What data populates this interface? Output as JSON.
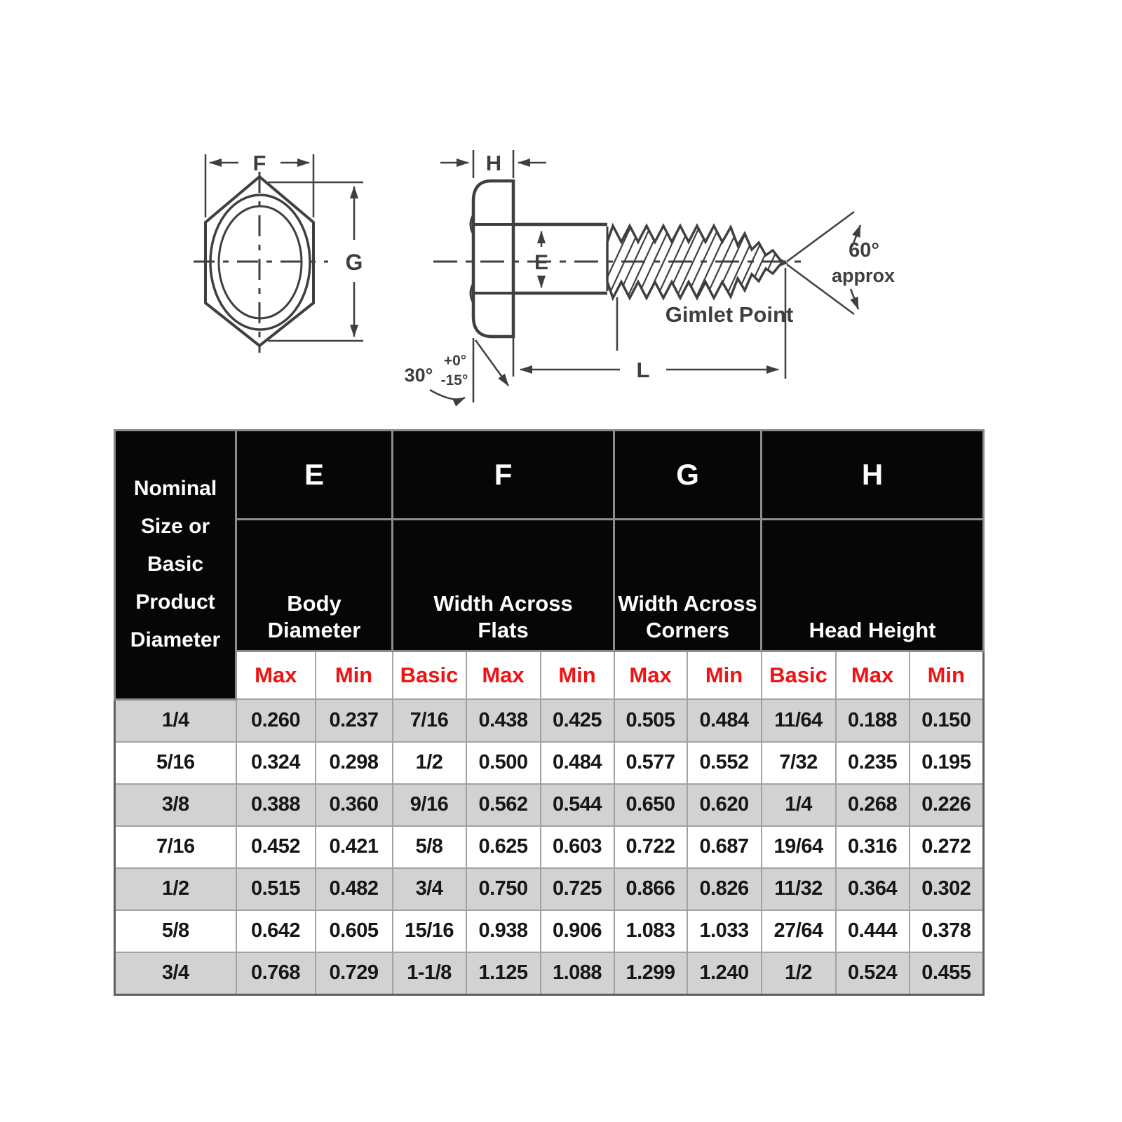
{
  "diagram": {
    "front_view": {
      "f_label": "F",
      "g_label": "G"
    },
    "side_view": {
      "h_label": "H",
      "e_label": "E",
      "l_label": "L",
      "chamfer_angle": "30°",
      "chamfer_tol_plus": "+0°",
      "chamfer_tol_minus": "-15°",
      "point_angle": "60°",
      "point_angle_note": "approx",
      "point_label": "Gimlet Point"
    }
  },
  "table": {
    "corner_header": "Nominal\nSize or\nBasic\nProduct\nDiameter",
    "groups": [
      {
        "letter": "E",
        "description": "Body\nDiameter"
      },
      {
        "letter": "F",
        "description": "Width Across\nFlats"
      },
      {
        "letter": "G",
        "description": "Width Across\nCorners"
      },
      {
        "letter": "H",
        "description": "Head Height"
      }
    ],
    "sub_headers": [
      "Max",
      "Min",
      "Basic",
      "Max",
      "Min",
      "Max",
      "Min",
      "Basic",
      "Max",
      "Min"
    ],
    "rows": [
      [
        "1/4",
        "0.260",
        "0.237",
        "7/16",
        "0.438",
        "0.425",
        "0.505",
        "0.484",
        "11/64",
        "0.188",
        "0.150"
      ],
      [
        "5/16",
        "0.324",
        "0.298",
        "1/2",
        "0.500",
        "0.484",
        "0.577",
        "0.552",
        "7/32",
        "0.235",
        "0.195"
      ],
      [
        "3/8",
        "0.388",
        "0.360",
        "9/16",
        "0.562",
        "0.544",
        "0.650",
        "0.620",
        "1/4",
        "0.268",
        "0.226"
      ],
      [
        "7/16",
        "0.452",
        "0.421",
        "5/8",
        "0.625",
        "0.603",
        "0.722",
        "0.687",
        "19/64",
        "0.316",
        "0.272"
      ],
      [
        "1/2",
        "0.515",
        "0.482",
        "3/4",
        "0.750",
        "0.725",
        "0.866",
        "0.826",
        "11/32",
        "0.364",
        "0.302"
      ],
      [
        "5/8",
        "0.642",
        "0.605",
        "15/16",
        "0.938",
        "0.906",
        "1.083",
        "1.033",
        "27/64",
        "0.444",
        "0.378"
      ],
      [
        "3/4",
        "0.768",
        "0.729",
        "1-1/8",
        "1.125",
        "1.088",
        "1.299",
        "1.240",
        "1/2",
        "0.524",
        "0.455"
      ]
    ]
  },
  "colors": {
    "accent_red": "#ee1414",
    "header_bg": "#060606",
    "row_stripe": "#d2d2d2",
    "line_gray": "#3f3f3f"
  }
}
